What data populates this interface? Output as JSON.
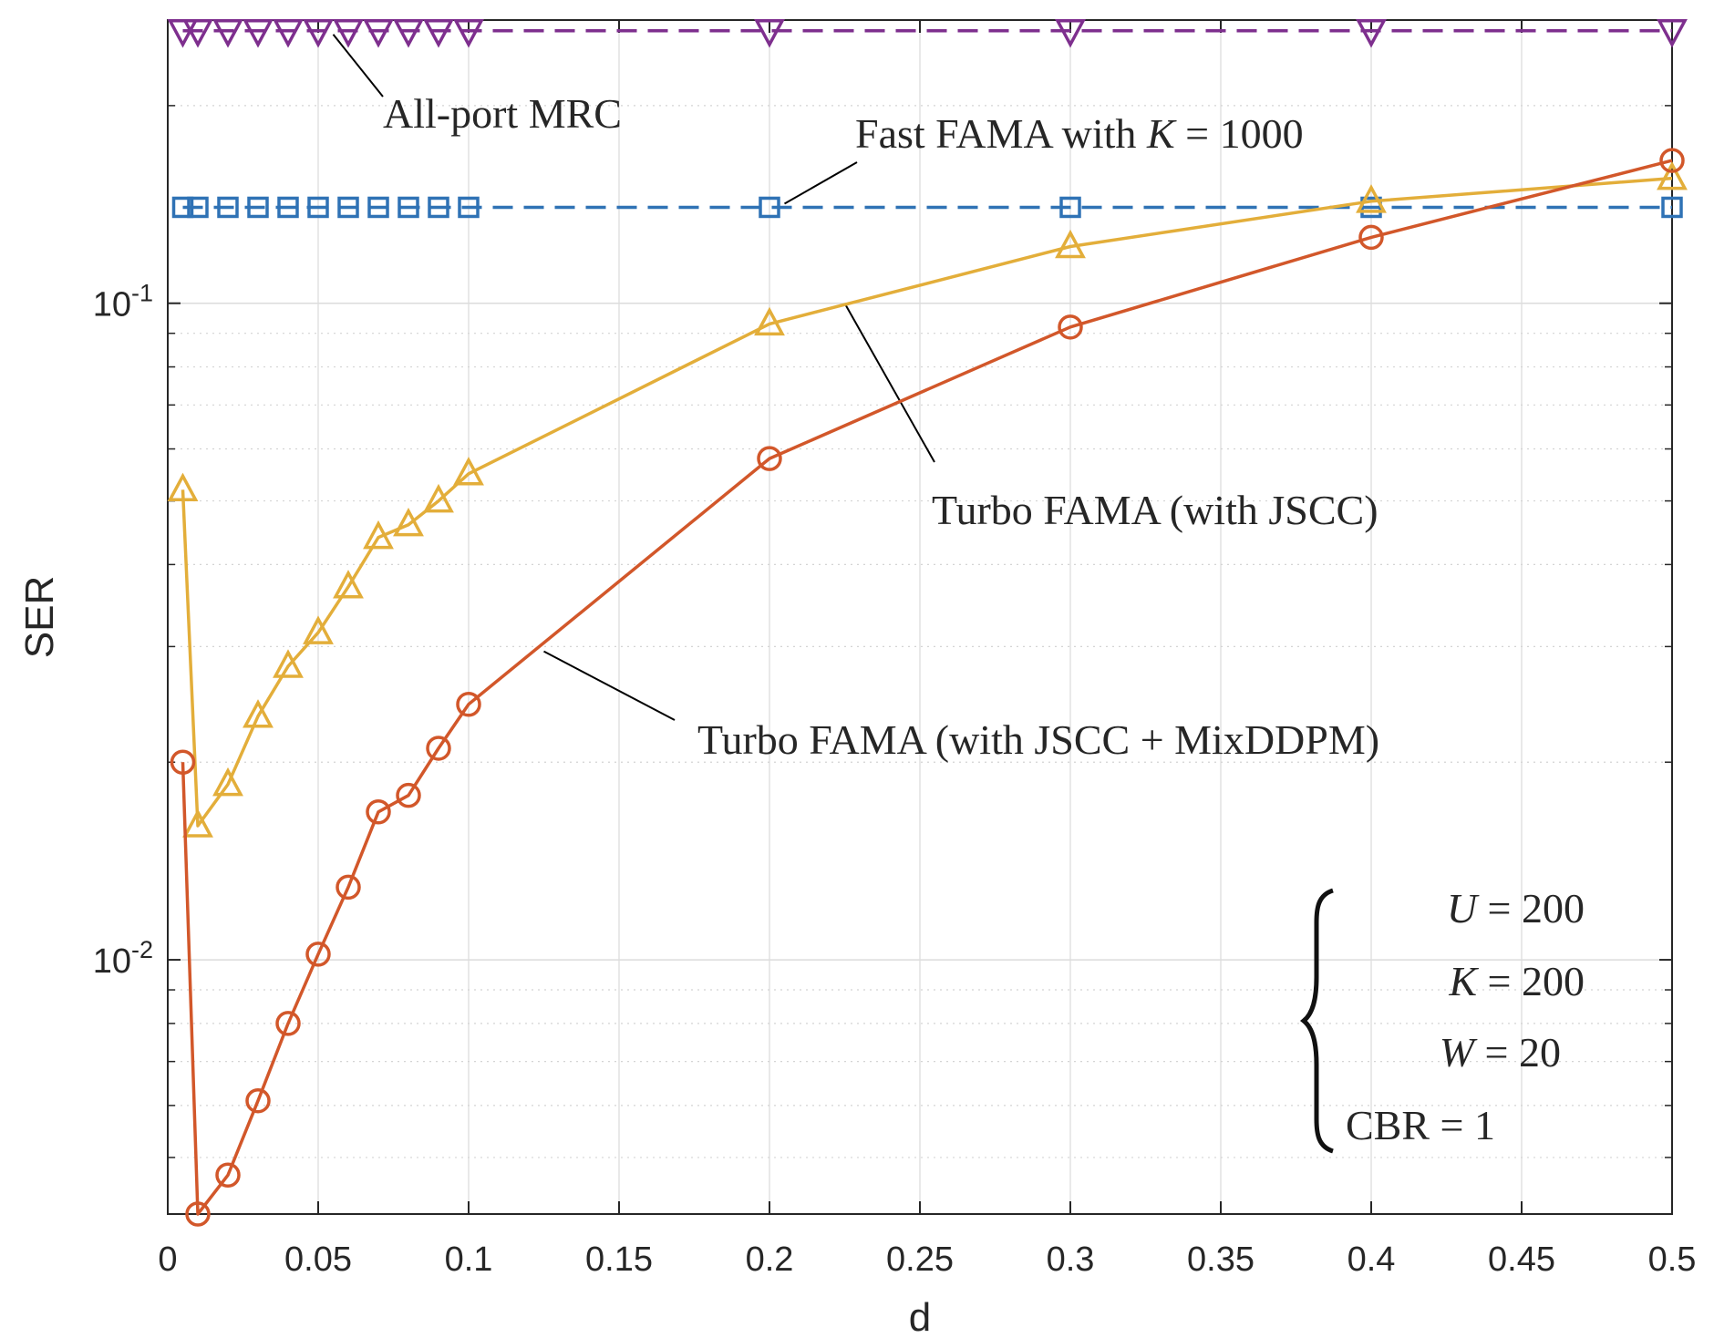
{
  "chart_data": {
    "type": "line",
    "xlabel": "d",
    "ylabel": "SER",
    "xscale": "linear",
    "yscale": "log",
    "xlim": [
      0,
      0.5
    ],
    "ylim": [
      0.0041,
      0.27
    ],
    "grid": true,
    "minor_grid": true,
    "xtick_labels": [
      "0",
      "0.05",
      "0.1",
      "0.15",
      "0.2",
      "0.25",
      "0.3",
      "0.35",
      "0.4",
      "0.45",
      "0.5"
    ],
    "ytick_labels": [
      {
        "base": "10",
        "exp": "-2"
      },
      {
        "base": "10",
        "exp": "-1"
      }
    ],
    "series": [
      {
        "name": "All-port MRC",
        "color": "#7E2F8E",
        "marker": "triangle-down",
        "line_style": "dashed",
        "x": [
          0.005,
          0.01,
          0.02,
          0.03,
          0.04,
          0.05,
          0.06,
          0.07,
          0.08,
          0.09,
          0.1,
          0.2,
          0.3,
          0.4,
          0.5
        ],
        "values": [
          0.26,
          0.26,
          0.26,
          0.26,
          0.26,
          0.26,
          0.26,
          0.26,
          0.26,
          0.26,
          0.26,
          0.26,
          0.26,
          0.26,
          0.26
        ]
      },
      {
        "name": "Fast FAMA with K = 1000",
        "color": "#2F72B5",
        "marker": "square",
        "line_style": "dashed",
        "x": [
          0.005,
          0.01,
          0.02,
          0.03,
          0.04,
          0.05,
          0.06,
          0.07,
          0.08,
          0.09,
          0.1,
          0.2,
          0.3,
          0.4,
          0.5
        ],
        "values": [
          0.14,
          0.14,
          0.14,
          0.14,
          0.14,
          0.14,
          0.14,
          0.14,
          0.14,
          0.14,
          0.14,
          0.14,
          0.14,
          0.14,
          0.14
        ]
      },
      {
        "name": "Turbo FAMA (with JSCC)",
        "color": "#E3AE3A",
        "marker": "triangle-up",
        "line_style": "solid",
        "x": [
          0.005,
          0.01,
          0.02,
          0.03,
          0.04,
          0.05,
          0.06,
          0.07,
          0.08,
          0.09,
          0.1,
          0.2,
          0.3,
          0.4,
          0.5
        ],
        "values": [
          0.052,
          0.016,
          0.0185,
          0.0235,
          0.028,
          0.0315,
          0.037,
          0.044,
          0.046,
          0.05,
          0.055,
          0.093,
          0.122,
          0.143,
          0.155
        ]
      },
      {
        "name": "Turbo FAMA (with JSCC + MixDDPM)",
        "color": "#D2572A",
        "marker": "circle",
        "line_style": "solid",
        "x": [
          0.005,
          0.01,
          0.02,
          0.03,
          0.04,
          0.05,
          0.06,
          0.07,
          0.08,
          0.09,
          0.1,
          0.2,
          0.3,
          0.4,
          0.5
        ],
        "values": [
          0.02,
          0.0041,
          0.0047,
          0.0061,
          0.008,
          0.0102,
          0.0129,
          0.0168,
          0.0178,
          0.021,
          0.0245,
          0.058,
          0.092,
          0.126,
          0.165
        ]
      }
    ],
    "annotations": {
      "mrc": "All-port MRC",
      "fast_prefix": "Fast FAMA with ",
      "fast_var": "K",
      "fast_rest": " = 1000",
      "turbo_jscc": "Turbo FAMA (with JSCC)",
      "turbo_mix": "Turbo FAMA (with JSCC + MixDDPM)"
    },
    "parameters": [
      {
        "var": "U",
        "rest": " = 200"
      },
      {
        "var": "K",
        "rest": " = 200"
      },
      {
        "var": "W",
        "rest": " = 20"
      },
      {
        "var": "",
        "rest": "CBR = 1"
      }
    ]
  }
}
